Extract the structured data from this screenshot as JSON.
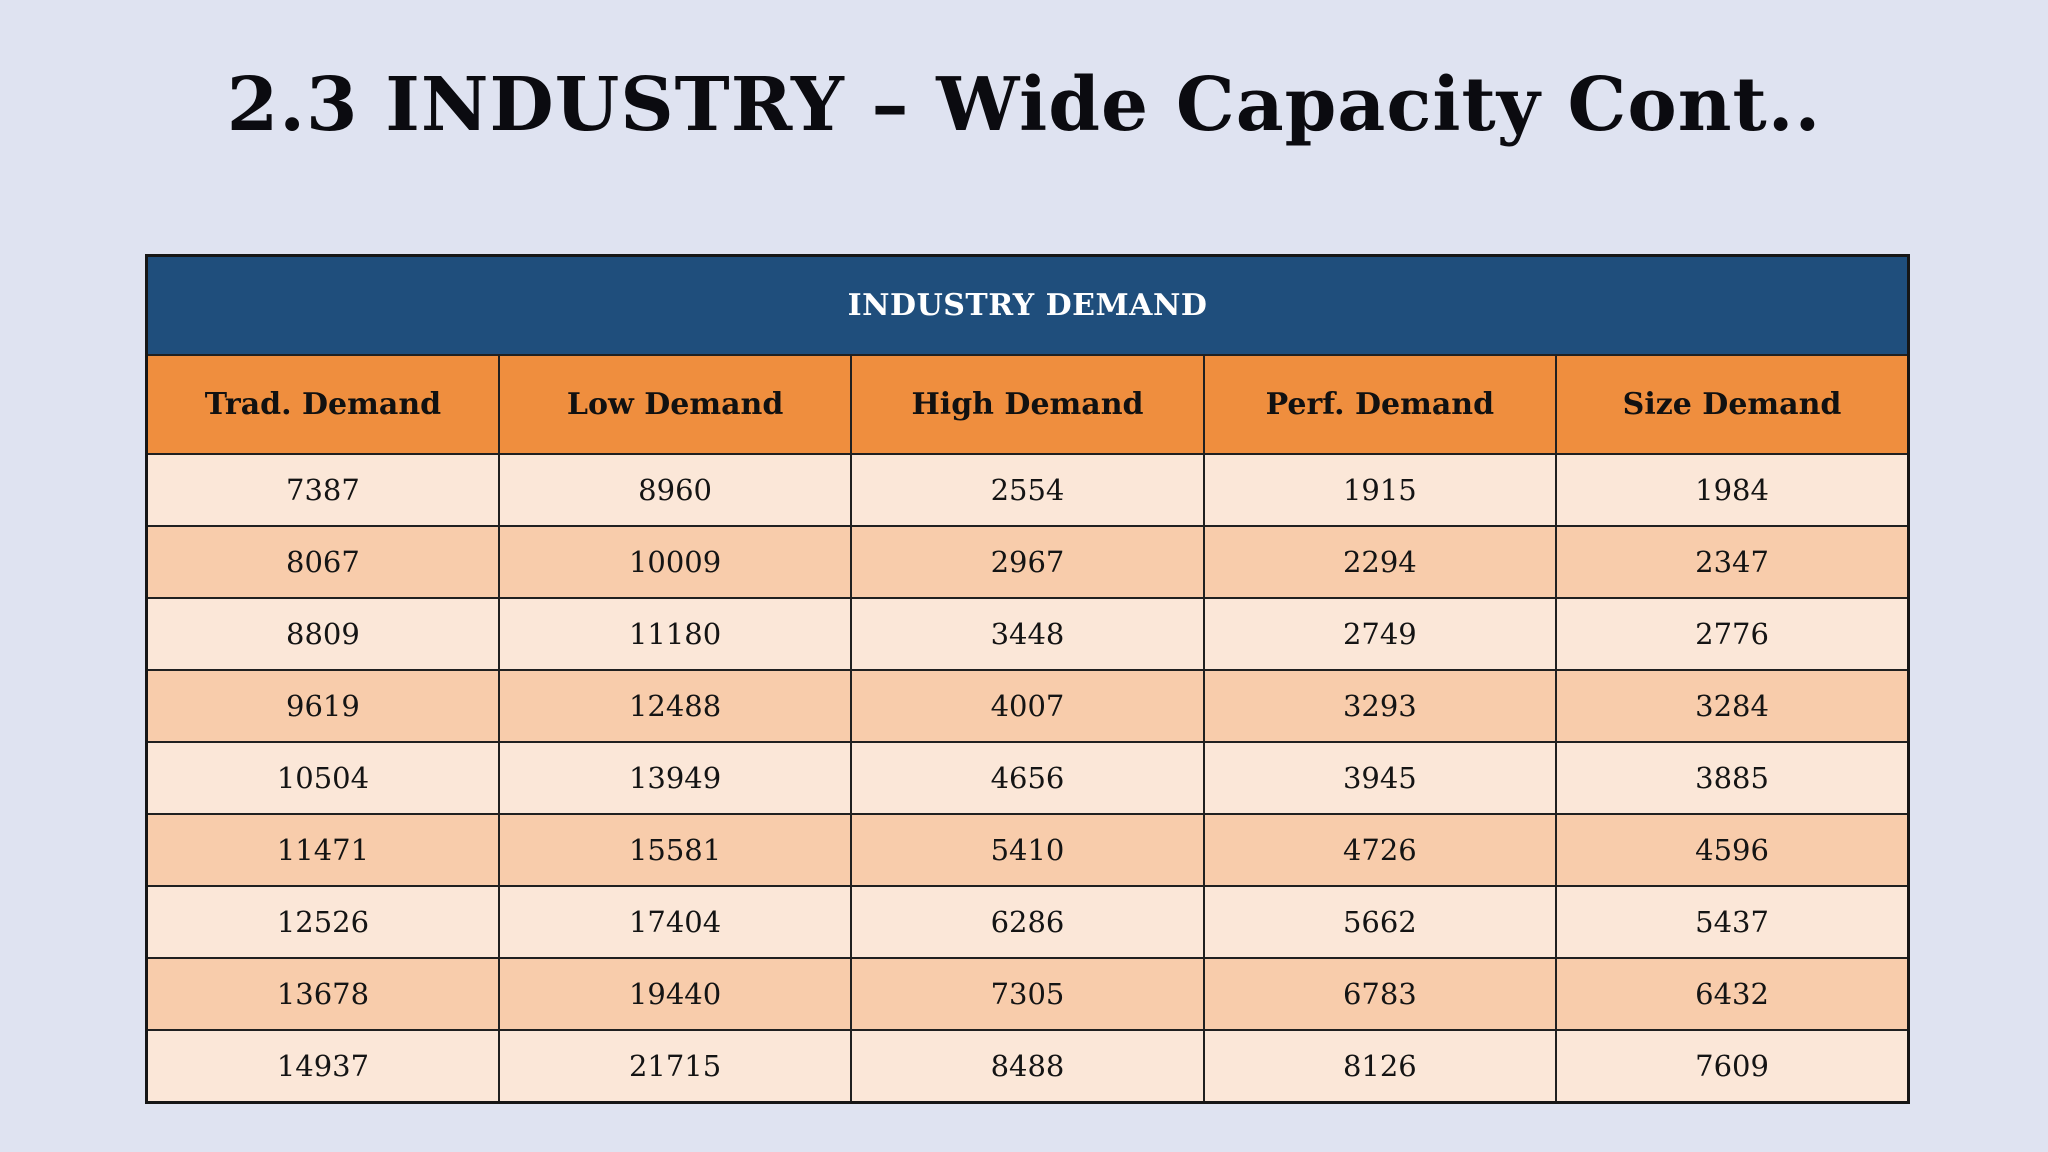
{
  "page": {
    "title": "2.3 INDUSTRY – Wide Capacity Cont.."
  },
  "colors": {
    "background": "#dfe3f1",
    "banner_blue": "#1f4e7c",
    "header_orange": "#ef8e3e",
    "row_light": "#fbe7d8",
    "row_dark": "#f8ccab",
    "border": "#202020",
    "banner_text": "#ffffff",
    "body_text": "#141414"
  },
  "chart_data": {
    "type": "table",
    "title": "INDUSTRY DEMAND",
    "columns": [
      "Trad. Demand",
      "Low Demand",
      "High Demand",
      "Perf. Demand",
      "Size Demand"
    ],
    "rows": [
      [
        "7387",
        "8960",
        "2554",
        "1915",
        "1984"
      ],
      [
        "8067",
        "10009",
        "2967",
        "2294",
        "2347"
      ],
      [
        "8809",
        "11180",
        "3448",
        "2749",
        "2776"
      ],
      [
        "9619",
        "12488",
        "4007",
        "3293",
        "3284"
      ],
      [
        "10504",
        "13949",
        "4656",
        "3945",
        "3885"
      ],
      [
        "11471",
        "15581",
        "5410",
        "4726",
        "4596"
      ],
      [
        "12526",
        "17404",
        "6286",
        "5662",
        "5437"
      ],
      [
        "13678",
        "19440",
        "7305",
        "6783",
        "6432"
      ],
      [
        "14937",
        "21715",
        "8488",
        "8126",
        "7609"
      ]
    ]
  }
}
